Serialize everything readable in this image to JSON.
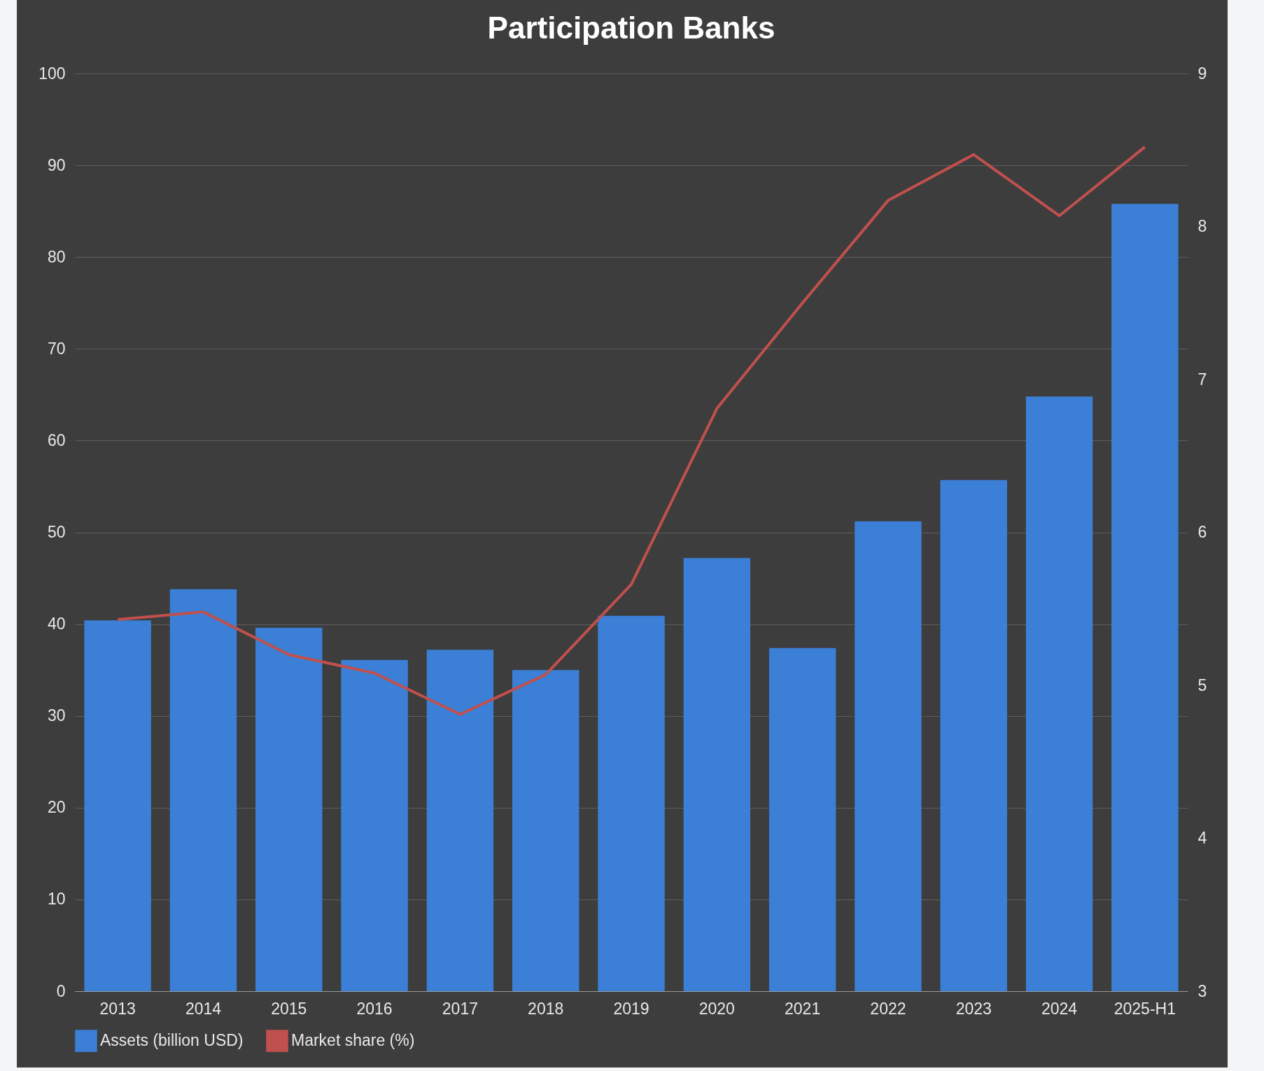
{
  "chart_data": {
    "type": "bar",
    "title": "Participation Banks",
    "categories": [
      "2013",
      "2014",
      "2015",
      "2016",
      "2017",
      "2018",
      "2019",
      "2020",
      "2021",
      "2022",
      "2023",
      "2024",
      "2025-H1"
    ],
    "series": [
      {
        "name": "Assets (billion USD)",
        "color": "#3b80d6",
        "values": [
          40.4,
          43.8,
          39.6,
          36.1,
          37.2,
          35.0,
          40.9,
          47.2,
          37.4,
          51.2,
          55.7,
          64.8,
          85.8
        ]
      },
      {
        "name": "Market share (%)",
        "type": "line",
        "axis": "y2",
        "color": "#c0504d",
        "values": [
          5.43,
          5.48,
          5.2,
          5.08,
          4.81,
          5.07,
          5.66,
          6.81,
          7.5,
          8.17,
          8.47,
          8.07,
          8.52
        ]
      }
    ],
    "ylim": [
      0,
      100
    ],
    "yticks": [
      0,
      10,
      20,
      30,
      40,
      50,
      60,
      70,
      80,
      90,
      100
    ],
    "y2lim": [
      3,
      9
    ],
    "y2ticks": [
      3,
      4,
      5,
      6,
      7,
      8,
      9
    ],
    "grid": "y",
    "legend": "bottom"
  }
}
